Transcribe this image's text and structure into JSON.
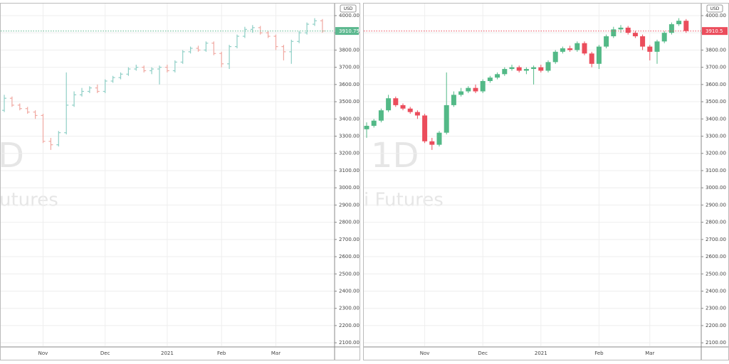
{
  "chart_data": [
    {
      "type": "ohlc",
      "currency": "USD",
      "watermark": "D",
      "watermark_subtitle": "utures",
      "up_color": "#8fcfc6",
      "down_color": "#f0a9a2",
      "last_price": 3910.75,
      "last_price_color": "#5cb88f",
      "ylim": [
        2080,
        4070
      ],
      "yticks": [
        {
          "value": 2100,
          "label": "2100.00"
        },
        {
          "value": 2200,
          "label": "2200.00"
        },
        {
          "value": 2300,
          "label": "2300.00"
        },
        {
          "value": 2400,
          "label": "2400.00"
        },
        {
          "value": 2500,
          "label": "2500.00"
        },
        {
          "value": 2600,
          "label": "2600.00"
        },
        {
          "value": 2700,
          "label": "2700.00"
        },
        {
          "value": 2800,
          "label": "2800.00"
        },
        {
          "value": 2900,
          "label": "2900.00"
        },
        {
          "value": 3000,
          "label": "3000.00"
        },
        {
          "value": 3100,
          "label": "3100.00"
        },
        {
          "value": 3200,
          "label": "3200.00"
        },
        {
          "value": 3300,
          "label": "3300.00"
        },
        {
          "value": 3400,
          "label": "3400.00"
        },
        {
          "value": 3500,
          "label": "3500.00"
        },
        {
          "value": 3600,
          "label": "3600.00"
        },
        {
          "value": 3700,
          "label": "3700.00"
        },
        {
          "value": 3800,
          "label": "3800.00"
        },
        {
          "value": 3900,
          "label": "3900.00"
        },
        {
          "value": 4000,
          "label": "4000.00"
        }
      ],
      "categories": [
        null,
        null,
        null,
        null,
        null,
        "Nov",
        null,
        null,
        null,
        null,
        null,
        null,
        null,
        "Dec",
        null,
        null,
        null,
        null,
        null,
        null,
        null,
        "2021",
        null,
        null,
        null,
        null,
        null,
        null,
        "Feb",
        null,
        null,
        null,
        null,
        null,
        null,
        "Mar",
        null,
        null,
        null,
        null,
        null,
        null
      ],
      "open": [
        3450,
        3520,
        3480,
        3460,
        3440,
        3420,
        3270,
        3250,
        3320,
        3480,
        3540,
        3560,
        3580,
        3560,
        3620,
        3640,
        3660,
        3690,
        3700,
        3680,
        3690,
        3700,
        3680,
        3730,
        3790,
        3810,
        3800,
        3840,
        3780,
        3720,
        3820,
        3880,
        3920,
        3930,
        3900,
        3880,
        3820,
        3790,
        3850,
        3900,
        3950,
        3970
      ],
      "high": [
        3540,
        3530,
        3490,
        3470,
        3450,
        3430,
        3290,
        3330,
        3670,
        3560,
        3580,
        3590,
        3600,
        3630,
        3650,
        3670,
        3700,
        3715,
        3710,
        3700,
        3710,
        3715,
        3740,
        3800,
        3820,
        3825,
        3850,
        3850,
        3790,
        3830,
        3890,
        3935,
        3945,
        3940,
        3910,
        3890,
        3830,
        3860,
        3910,
        3960,
        3985,
        3980
      ],
      "low": [
        3440,
        3470,
        3450,
        3430,
        3400,
        3260,
        3220,
        3240,
        3310,
        3470,
        3530,
        3550,
        3550,
        3550,
        3610,
        3630,
        3650,
        3680,
        3670,
        3660,
        3600,
        3670,
        3670,
        3720,
        3780,
        3790,
        3790,
        3770,
        3700,
        3690,
        3810,
        3870,
        3900,
        3890,
        3870,
        3800,
        3740,
        3720,
        3840,
        3890,
        3940,
        3900
      ],
      "close": [
        3520,
        3480,
        3460,
        3440,
        3420,
        3270,
        3250,
        3320,
        3480,
        3540,
        3560,
        3580,
        3560,
        3620,
        3640,
        3660,
        3690,
        3700,
        3680,
        3690,
        3700,
        3680,
        3730,
        3790,
        3810,
        3800,
        3840,
        3780,
        3720,
        3820,
        3880,
        3920,
        3930,
        3900,
        3880,
        3820,
        3790,
        3850,
        3900,
        3950,
        3970,
        3910.75
      ]
    },
    {
      "type": "candlestick",
      "currency": "USD",
      "watermark": "1D",
      "watermark_subtitle": "i Futures",
      "up_color": "#53b987",
      "down_color": "#eb4d5c",
      "last_price": 3910.5,
      "last_price_color": "#eb4d5c",
      "ylim": [
        2080,
        4070
      ],
      "yticks": [
        {
          "value": 2100,
          "label": "2100.00"
        },
        {
          "value": 2200,
          "label": "2200.00"
        },
        {
          "value": 2300,
          "label": "2300.00"
        },
        {
          "value": 2400,
          "label": "2400.00"
        },
        {
          "value": 2500,
          "label": "2500.00"
        },
        {
          "value": 2600,
          "label": "2600.00"
        },
        {
          "value": 2700,
          "label": "2700.00"
        },
        {
          "value": 2800,
          "label": "2800.00"
        },
        {
          "value": 2900,
          "label": "2900.00"
        },
        {
          "value": 3000,
          "label": "3000.00"
        },
        {
          "value": 3100,
          "label": "3100.00"
        },
        {
          "value": 3200,
          "label": "3200.00"
        },
        {
          "value": 3300,
          "label": "3300.00"
        },
        {
          "value": 3400,
          "label": "3400.00"
        },
        {
          "value": 3500,
          "label": "3500.00"
        },
        {
          "value": 3600,
          "label": "3600.00"
        },
        {
          "value": 3700,
          "label": "3700.00"
        },
        {
          "value": 3800,
          "label": "3800.00"
        },
        {
          "value": 3900,
          "label": "3900.00"
        },
        {
          "value": 4000,
          "label": "4000.00"
        }
      ],
      "categories": [
        null,
        null,
        null,
        null,
        null,
        null,
        null,
        null,
        "Nov",
        null,
        null,
        null,
        null,
        null,
        null,
        null,
        "Dec",
        null,
        null,
        null,
        null,
        null,
        null,
        null,
        "2021",
        null,
        null,
        null,
        null,
        null,
        null,
        null,
        "Feb",
        null,
        null,
        null,
        null,
        null,
        null,
        "Mar",
        null,
        null,
        null,
        null,
        null
      ],
      "open": [
        3340,
        3360,
        3390,
        3450,
        3520,
        3480,
        3460,
        3440,
        3420,
        3270,
        3250,
        3320,
        3480,
        3540,
        3560,
        3580,
        3560,
        3620,
        3640,
        3660,
        3690,
        3700,
        3680,
        3690,
        3700,
        3680,
        3730,
        3790,
        3810,
        3800,
        3840,
        3780,
        3720,
        3820,
        3880,
        3920,
        3930,
        3900,
        3880,
        3820,
        3790,
        3850,
        3900,
        3950,
        3970
      ],
      "high": [
        3380,
        3400,
        3460,
        3540,
        3530,
        3490,
        3470,
        3450,
        3430,
        3290,
        3330,
        3670,
        3560,
        3580,
        3590,
        3600,
        3630,
        3650,
        3670,
        3700,
        3715,
        3710,
        3700,
        3710,
        3715,
        3740,
        3800,
        3820,
        3825,
        3850,
        3850,
        3790,
        3830,
        3890,
        3935,
        3945,
        3940,
        3910,
        3890,
        3830,
        3860,
        3910,
        3960,
        3985,
        3980
      ],
      "low": [
        3290,
        3350,
        3380,
        3440,
        3470,
        3450,
        3430,
        3400,
        3260,
        3220,
        3240,
        3310,
        3470,
        3530,
        3550,
        3550,
        3550,
        3610,
        3630,
        3650,
        3680,
        3670,
        3660,
        3600,
        3670,
        3670,
        3720,
        3780,
        3790,
        3790,
        3770,
        3700,
        3690,
        3810,
        3870,
        3900,
        3890,
        3870,
        3800,
        3740,
        3720,
        3840,
        3890,
        3940,
        3900
      ],
      "close": [
        3360,
        3390,
        3450,
        3520,
        3480,
        3460,
        3440,
        3420,
        3270,
        3250,
        3320,
        3480,
        3540,
        3560,
        3580,
        3560,
        3620,
        3640,
        3660,
        3690,
        3700,
        3680,
        3690,
        3700,
        3680,
        3730,
        3790,
        3810,
        3800,
        3840,
        3780,
        3720,
        3820,
        3880,
        3920,
        3930,
        3900,
        3880,
        3820,
        3790,
        3850,
        3900,
        3950,
        3970,
        3910.5
      ]
    }
  ]
}
